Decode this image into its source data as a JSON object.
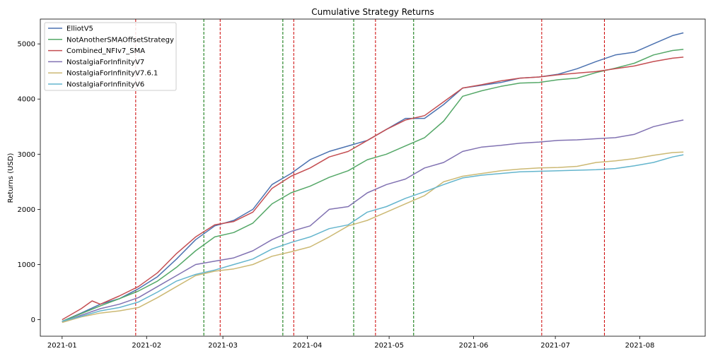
{
  "chart_data": {
    "type": "line",
    "title": "Cumulative Strategy Returns",
    "xlabel": "",
    "ylabel": "Returns (USD)",
    "x_domain": [
      "2020-12-24",
      "2021-08-25"
    ],
    "y_domain": [
      -300,
      5450
    ],
    "x_ticks": [
      {
        "date": "2021-01-01",
        "label": "2021-01"
      },
      {
        "date": "2021-02-01",
        "label": "2021-02"
      },
      {
        "date": "2021-03-01",
        "label": "2021-03"
      },
      {
        "date": "2021-04-01",
        "label": "2021-04"
      },
      {
        "date": "2021-05-01",
        "label": "2021-05"
      },
      {
        "date": "2021-06-01",
        "label": "2021-06"
      },
      {
        "date": "2021-07-01",
        "label": "2021-07"
      },
      {
        "date": "2021-08-01",
        "label": "2021-08"
      }
    ],
    "y_ticks": [
      0,
      1000,
      2000,
      3000,
      4000,
      5000
    ],
    "grid": false,
    "legend_position": "top-left",
    "vlines": [
      {
        "date": "2021-01-28",
        "color": "#cc0000"
      },
      {
        "date": "2021-02-22",
        "color": "#007000"
      },
      {
        "date": "2021-02-28",
        "color": "#cc0000"
      },
      {
        "date": "2021-03-23",
        "color": "#007000"
      },
      {
        "date": "2021-03-27",
        "color": "#cc0000"
      },
      {
        "date": "2021-04-18",
        "color": "#007000"
      },
      {
        "date": "2021-04-26",
        "color": "#cc0000"
      },
      {
        "date": "2021-05-10",
        "color": "#007000"
      },
      {
        "date": "2021-06-26",
        "color": "#cc0000"
      },
      {
        "date": "2021-07-19",
        "color": "#cc0000"
      }
    ],
    "series": [
      {
        "name": "ElliotV5",
        "color": "#4c72b0",
        "points": [
          [
            "2021-01-01",
            -30
          ],
          [
            "2021-01-08",
            120
          ],
          [
            "2021-01-15",
            280
          ],
          [
            "2021-01-22",
            380
          ],
          [
            "2021-01-29",
            560
          ],
          [
            "2021-02-05",
            780
          ],
          [
            "2021-02-12",
            1100
          ],
          [
            "2021-02-19",
            1450
          ],
          [
            "2021-02-26",
            1700
          ],
          [
            "2021-03-05",
            1800
          ],
          [
            "2021-03-12",
            2000
          ],
          [
            "2021-03-19",
            2450
          ],
          [
            "2021-03-26",
            2650
          ],
          [
            "2021-04-02",
            2900
          ],
          [
            "2021-04-09",
            3050
          ],
          [
            "2021-04-16",
            3150
          ],
          [
            "2021-04-23",
            3250
          ],
          [
            "2021-04-30",
            3450
          ],
          [
            "2021-05-07",
            3650
          ],
          [
            "2021-05-14",
            3650
          ],
          [
            "2021-05-21",
            3900
          ],
          [
            "2021-05-28",
            4200
          ],
          [
            "2021-06-04",
            4250
          ],
          [
            "2021-06-11",
            4300
          ],
          [
            "2021-06-18",
            4380
          ],
          [
            "2021-06-25",
            4400
          ],
          [
            "2021-07-02",
            4450
          ],
          [
            "2021-07-09",
            4550
          ],
          [
            "2021-07-16",
            4680
          ],
          [
            "2021-07-23",
            4800
          ],
          [
            "2021-07-30",
            4850
          ],
          [
            "2021-08-06",
            5000
          ],
          [
            "2021-08-13",
            5150
          ],
          [
            "2021-08-17",
            5200
          ]
        ]
      },
      {
        "name": "NotAnotherSMAOffsetStrategy",
        "color": "#55a868",
        "points": [
          [
            "2021-01-01",
            -30
          ],
          [
            "2021-01-08",
            110
          ],
          [
            "2021-01-15",
            250
          ],
          [
            "2021-01-22",
            380
          ],
          [
            "2021-01-29",
            520
          ],
          [
            "2021-02-05",
            700
          ],
          [
            "2021-02-12",
            950
          ],
          [
            "2021-02-19",
            1250
          ],
          [
            "2021-02-26",
            1500
          ],
          [
            "2021-03-05",
            1580
          ],
          [
            "2021-03-12",
            1750
          ],
          [
            "2021-03-19",
            2100
          ],
          [
            "2021-03-26",
            2300
          ],
          [
            "2021-04-02",
            2420
          ],
          [
            "2021-04-09",
            2580
          ],
          [
            "2021-04-16",
            2700
          ],
          [
            "2021-04-23",
            2900
          ],
          [
            "2021-04-30",
            3000
          ],
          [
            "2021-05-07",
            3150
          ],
          [
            "2021-05-14",
            3300
          ],
          [
            "2021-05-21",
            3600
          ],
          [
            "2021-05-28",
            4050
          ],
          [
            "2021-06-04",
            4150
          ],
          [
            "2021-06-11",
            4230
          ],
          [
            "2021-06-18",
            4290
          ],
          [
            "2021-06-25",
            4300
          ],
          [
            "2021-07-02",
            4350
          ],
          [
            "2021-07-09",
            4380
          ],
          [
            "2021-07-16",
            4480
          ],
          [
            "2021-07-23",
            4560
          ],
          [
            "2021-07-30",
            4650
          ],
          [
            "2021-08-06",
            4800
          ],
          [
            "2021-08-13",
            4880
          ],
          [
            "2021-08-17",
            4900
          ]
        ]
      },
      {
        "name": "Combined_NFIv7_SMA",
        "color": "#c44e52",
        "points": [
          [
            "2021-01-01",
            0
          ],
          [
            "2021-01-08",
            200
          ],
          [
            "2021-01-12",
            340
          ],
          [
            "2021-01-15",
            280
          ],
          [
            "2021-01-22",
            430
          ],
          [
            "2021-01-29",
            600
          ],
          [
            "2021-02-05",
            850
          ],
          [
            "2021-02-12",
            1200
          ],
          [
            "2021-02-19",
            1500
          ],
          [
            "2021-02-26",
            1720
          ],
          [
            "2021-03-05",
            1780
          ],
          [
            "2021-03-12",
            1950
          ],
          [
            "2021-03-19",
            2380
          ],
          [
            "2021-03-26",
            2600
          ],
          [
            "2021-04-02",
            2750
          ],
          [
            "2021-04-09",
            2950
          ],
          [
            "2021-04-16",
            3050
          ],
          [
            "2021-04-23",
            3250
          ],
          [
            "2021-04-30",
            3450
          ],
          [
            "2021-05-07",
            3620
          ],
          [
            "2021-05-14",
            3700
          ],
          [
            "2021-05-21",
            3950
          ],
          [
            "2021-05-28",
            4200
          ],
          [
            "2021-06-04",
            4260
          ],
          [
            "2021-06-11",
            4330
          ],
          [
            "2021-06-18",
            4380
          ],
          [
            "2021-06-25",
            4400
          ],
          [
            "2021-07-02",
            4440
          ],
          [
            "2021-07-09",
            4470
          ],
          [
            "2021-07-16",
            4500
          ],
          [
            "2021-07-23",
            4550
          ],
          [
            "2021-07-30",
            4600
          ],
          [
            "2021-08-06",
            4680
          ],
          [
            "2021-08-13",
            4740
          ],
          [
            "2021-08-17",
            4760
          ]
        ]
      },
      {
        "name": "NostalgiaForInfinityV7",
        "color": "#8172b2",
        "points": [
          [
            "2021-01-01",
            -40
          ],
          [
            "2021-01-08",
            80
          ],
          [
            "2021-01-15",
            200
          ],
          [
            "2021-01-22",
            280
          ],
          [
            "2021-01-29",
            400
          ],
          [
            "2021-02-05",
            600
          ],
          [
            "2021-02-12",
            800
          ],
          [
            "2021-02-19",
            1000
          ],
          [
            "2021-02-26",
            1060
          ],
          [
            "2021-03-05",
            1120
          ],
          [
            "2021-03-12",
            1250
          ],
          [
            "2021-03-19",
            1450
          ],
          [
            "2021-03-26",
            1600
          ],
          [
            "2021-04-02",
            1700
          ],
          [
            "2021-04-09",
            2000
          ],
          [
            "2021-04-16",
            2050
          ],
          [
            "2021-04-23",
            2300
          ],
          [
            "2021-04-30",
            2450
          ],
          [
            "2021-05-07",
            2550
          ],
          [
            "2021-05-14",
            2750
          ],
          [
            "2021-05-21",
            2850
          ],
          [
            "2021-05-28",
            3050
          ],
          [
            "2021-06-04",
            3130
          ],
          [
            "2021-06-11",
            3160
          ],
          [
            "2021-06-18",
            3200
          ],
          [
            "2021-06-25",
            3220
          ],
          [
            "2021-07-02",
            3250
          ],
          [
            "2021-07-09",
            3260
          ],
          [
            "2021-07-16",
            3280
          ],
          [
            "2021-07-23",
            3300
          ],
          [
            "2021-07-30",
            3360
          ],
          [
            "2021-08-06",
            3500
          ],
          [
            "2021-08-13",
            3580
          ],
          [
            "2021-08-17",
            3620
          ]
        ]
      },
      {
        "name": "NostalgiaForInfinityV7.6.1",
        "color": "#ccb974",
        "points": [
          [
            "2021-01-01",
            -50
          ],
          [
            "2021-01-08",
            50
          ],
          [
            "2021-01-15",
            120
          ],
          [
            "2021-01-22",
            160
          ],
          [
            "2021-01-29",
            220
          ],
          [
            "2021-02-05",
            400
          ],
          [
            "2021-02-12",
            600
          ],
          [
            "2021-02-19",
            800
          ],
          [
            "2021-02-26",
            880
          ],
          [
            "2021-03-05",
            920
          ],
          [
            "2021-03-12",
            1000
          ],
          [
            "2021-03-19",
            1150
          ],
          [
            "2021-03-26",
            1230
          ],
          [
            "2021-04-02",
            1320
          ],
          [
            "2021-04-09",
            1500
          ],
          [
            "2021-04-16",
            1700
          ],
          [
            "2021-04-23",
            1800
          ],
          [
            "2021-04-30",
            1950
          ],
          [
            "2021-05-07",
            2100
          ],
          [
            "2021-05-14",
            2250
          ],
          [
            "2021-05-21",
            2500
          ],
          [
            "2021-05-28",
            2600
          ],
          [
            "2021-06-04",
            2650
          ],
          [
            "2021-06-11",
            2700
          ],
          [
            "2021-06-18",
            2730
          ],
          [
            "2021-06-25",
            2750
          ],
          [
            "2021-07-02",
            2760
          ],
          [
            "2021-07-09",
            2780
          ],
          [
            "2021-07-16",
            2850
          ],
          [
            "2021-07-23",
            2880
          ],
          [
            "2021-07-30",
            2920
          ],
          [
            "2021-08-06",
            2980
          ],
          [
            "2021-08-13",
            3030
          ],
          [
            "2021-08-17",
            3040
          ]
        ]
      },
      {
        "name": "NostalgiaForInfinityV6",
        "color": "#64b5cd",
        "points": [
          [
            "2021-01-01",
            -30
          ],
          [
            "2021-01-08",
            60
          ],
          [
            "2021-01-15",
            160
          ],
          [
            "2021-01-22",
            220
          ],
          [
            "2021-01-29",
            320
          ],
          [
            "2021-02-05",
            500
          ],
          [
            "2021-02-12",
            700
          ],
          [
            "2021-02-19",
            820
          ],
          [
            "2021-02-26",
            900
          ],
          [
            "2021-03-05",
            1000
          ],
          [
            "2021-03-12",
            1100
          ],
          [
            "2021-03-19",
            1280
          ],
          [
            "2021-03-26",
            1400
          ],
          [
            "2021-04-02",
            1500
          ],
          [
            "2021-04-09",
            1650
          ],
          [
            "2021-04-16",
            1720
          ],
          [
            "2021-04-23",
            1950
          ],
          [
            "2021-04-30",
            2050
          ],
          [
            "2021-05-07",
            2200
          ],
          [
            "2021-05-14",
            2320
          ],
          [
            "2021-05-21",
            2450
          ],
          [
            "2021-05-28",
            2570
          ],
          [
            "2021-06-04",
            2620
          ],
          [
            "2021-06-11",
            2650
          ],
          [
            "2021-06-18",
            2680
          ],
          [
            "2021-06-25",
            2690
          ],
          [
            "2021-07-02",
            2700
          ],
          [
            "2021-07-09",
            2710
          ],
          [
            "2021-07-16",
            2720
          ],
          [
            "2021-07-23",
            2740
          ],
          [
            "2021-07-30",
            2790
          ],
          [
            "2021-08-06",
            2850
          ],
          [
            "2021-08-13",
            2950
          ],
          [
            "2021-08-17",
            2990
          ]
        ]
      }
    ]
  }
}
